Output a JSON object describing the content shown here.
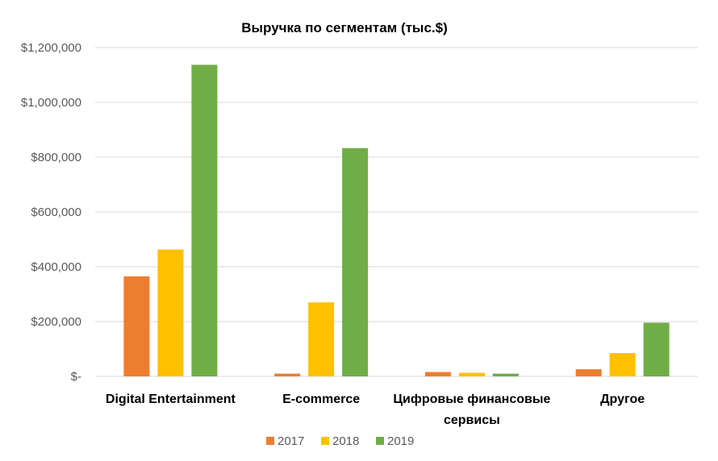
{
  "chart_data": {
    "type": "bar",
    "title": "Выручка по сегментам (тыс.$)",
    "categories": [
      [
        "Digital Entertainment"
      ],
      [
        "E-commerce"
      ],
      [
        "Цифровые финансовые",
        "сервисы"
      ],
      [
        "Другое"
      ]
    ],
    "series": [
      {
        "name": "2017",
        "color": "#ED7D31",
        "values": [
          365000,
          10000,
          16000,
          26000
        ]
      },
      {
        "name": "2018",
        "color": "#FFC000",
        "values": [
          463000,
          270000,
          13000,
          85000
        ]
      },
      {
        "name": "2019",
        "color": "#70AD47",
        "values": [
          1137000,
          833000,
          10000,
          196000
        ]
      }
    ],
    "ylim": [
      0,
      1200000
    ],
    "y_ticks": [
      {
        "value": 0,
        "label": "$-"
      },
      {
        "value": 200000,
        "label": "$200,000"
      },
      {
        "value": 400000,
        "label": "$400,000"
      },
      {
        "value": 600000,
        "label": "$600,000"
      },
      {
        "value": 800000,
        "label": "$800,000"
      },
      {
        "value": 1000000,
        "label": "$1,000,000"
      },
      {
        "value": 1200000,
        "label": "$1,200,000"
      }
    ],
    "grid": true,
    "legend": "bottom"
  }
}
